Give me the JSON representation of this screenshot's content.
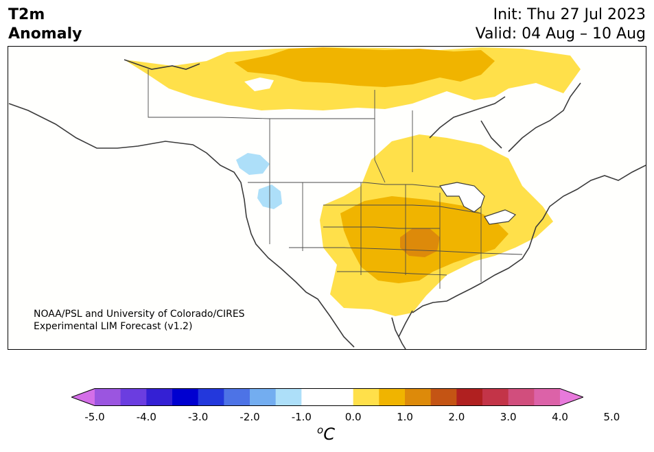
{
  "title": {
    "line1": "T2m",
    "line2": "Anomaly",
    "init": "Init: Thu 27 Jul 2023",
    "valid": "Valid: 04 Aug – 10 Aug"
  },
  "credit": {
    "line1": "NOAA/PSL and University of Colorado/CIRES",
    "line2": "Experimental LIM Forecast (v1.2)"
  },
  "colorbar": {
    "unit_base": "C",
    "unit_sup": "o",
    "tick_labels": [
      "-5.0",
      "-4.0",
      "-3.0",
      "-2.0",
      "-1.0",
      "0.0",
      "1.0",
      "2.0",
      "3.0",
      "4.0",
      "5.0"
    ],
    "colors": [
      "#d46fe8",
      "#9b55e0",
      "#6b3de0",
      "#3420d4",
      "#0000d0",
      "#2338dc",
      "#4d73e6",
      "#73adf0",
      "#addff9",
      "#ffffff",
      "#ffffff",
      "#ffe04a",
      "#f0b400",
      "#dd8a0a",
      "#c45414",
      "#b02020",
      "#c33448",
      "#d14e7d",
      "#dc62a8",
      "#e87adc"
    ]
  },
  "map": {
    "region": "North America",
    "anomaly_colors": {
      "light_yellow": "#ffe04a",
      "gold": "#f0b400",
      "orange": "#dd8a0a",
      "light_blue": "#addff9"
    }
  }
}
